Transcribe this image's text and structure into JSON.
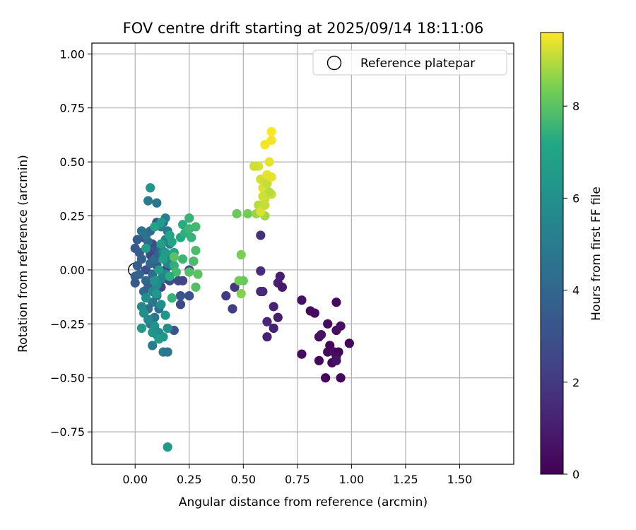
{
  "chart_data": {
    "type": "scatter",
    "title": "FOV centre drift starting at 2025/09/14 18:11:06",
    "xlabel": "Angular distance from reference (arcmin)",
    "ylabel": "Rotation from reference (arcmin)",
    "xlim": [
      -0.2,
      1.75
    ],
    "ylim": [
      -0.9,
      1.05
    ],
    "x_ticks": [
      0.0,
      0.25,
      0.5,
      0.75,
      1.0,
      1.25,
      1.5
    ],
    "x_tick_labels": [
      "0.00",
      "0.25",
      "0.50",
      "0.75",
      "1.00",
      "1.25",
      "1.50"
    ],
    "y_ticks": [
      -0.75,
      -0.5,
      -0.25,
      0.0,
      0.25,
      0.5,
      0.75,
      1.0
    ],
    "y_tick_labels": [
      "−0.75",
      "−0.50",
      "−0.25",
      "0.00",
      "0.25",
      "0.50",
      "0.75",
      "1.00"
    ],
    "grid": true,
    "legend": {
      "placement": "top-right",
      "entries": [
        "Reference platepar"
      ]
    },
    "reference_point": {
      "x": 0.0,
      "y": 0.0,
      "label": "Reference platepar"
    },
    "colorbar": {
      "label": "Hours from first FF file",
      "colormap": "viridis",
      "range": [
        0,
        9.6
      ],
      "ticks": [
        0,
        2,
        4,
        6,
        8
      ],
      "tick_labels": [
        "0",
        "2",
        "4",
        "6",
        "8"
      ]
    },
    "points": [
      {
        "x": 0.81,
        "y": -0.19,
        "h": 0.3
      },
      {
        "x": 0.88,
        "y": -0.5,
        "h": 0.2
      },
      {
        "x": 0.95,
        "y": -0.5,
        "h": 0.2
      },
      {
        "x": 0.89,
        "y": -0.25,
        "h": 0.4
      },
      {
        "x": 0.93,
        "y": -0.15,
        "h": 0.3
      },
      {
        "x": 0.95,
        "y": -0.26,
        "h": 0.5
      },
      {
        "x": 0.85,
        "y": -0.31,
        "h": 0.4
      },
      {
        "x": 0.86,
        "y": -0.3,
        "h": 0.6
      },
      {
        "x": 0.9,
        "y": -0.35,
        "h": 0.2
      },
      {
        "x": 0.89,
        "y": -0.38,
        "h": 0.3
      },
      {
        "x": 0.92,
        "y": -0.38,
        "h": 0.5
      },
      {
        "x": 0.94,
        "y": -0.38,
        "h": 0.1
      },
      {
        "x": 0.93,
        "y": -0.4,
        "h": 0.4
      },
      {
        "x": 0.91,
        "y": -0.43,
        "h": 0.3
      },
      {
        "x": 0.93,
        "y": -0.42,
        "h": 0.6
      },
      {
        "x": 0.85,
        "y": -0.42,
        "h": 0.2
      },
      {
        "x": 0.77,
        "y": -0.39,
        "h": 0.4
      },
      {
        "x": 0.99,
        "y": -0.34,
        "h": 0.1
      },
      {
        "x": 0.83,
        "y": -0.2,
        "h": 0.4
      },
      {
        "x": 0.93,
        "y": -0.28,
        "h": 0.5
      },
      {
        "x": 0.77,
        "y": -0.14,
        "h": 0.6
      },
      {
        "x": 0.67,
        "y": -0.03,
        "h": 1.0
      },
      {
        "x": 0.66,
        "y": -0.06,
        "h": 1.1
      },
      {
        "x": 0.68,
        "y": -0.08,
        "h": 0.9
      },
      {
        "x": 0.64,
        "y": -0.17,
        "h": 1.2
      },
      {
        "x": 0.66,
        "y": -0.22,
        "h": 1.0
      },
      {
        "x": 0.61,
        "y": -0.24,
        "h": 1.3
      },
      {
        "x": 0.64,
        "y": -0.27,
        "h": 1.1
      },
      {
        "x": 0.61,
        "y": -0.31,
        "h": 1.2
      },
      {
        "x": 0.59,
        "y": -0.1,
        "h": 1.4
      },
      {
        "x": 0.58,
        "y": -0.1,
        "h": 1.5
      },
      {
        "x": 0.58,
        "y": -0.005,
        "h": 1.6
      },
      {
        "x": 0.58,
        "y": 0.16,
        "h": 1.7
      },
      {
        "x": 0.42,
        "y": -0.12,
        "h": 2.1
      },
      {
        "x": 0.46,
        "y": -0.08,
        "h": 1.9
      },
      {
        "x": 0.45,
        "y": -0.18,
        "h": 2.2
      },
      {
        "x": 0.14,
        "y": 0.0,
        "h": 2.5
      },
      {
        "x": 0.16,
        "y": -0.05,
        "h": 2.8
      },
      {
        "x": 0.2,
        "y": -0.05,
        "h": 2.6
      },
      {
        "x": 0.22,
        "y": -0.05,
        "h": 2.4
      },
      {
        "x": 0.25,
        "y": -0.12,
        "h": 3.0
      },
      {
        "x": 0.21,
        "y": -0.12,
        "h": 3.2
      },
      {
        "x": 0.21,
        "y": -0.16,
        "h": 2.7
      },
      {
        "x": 0.18,
        "y": -0.28,
        "h": 3.1
      },
      {
        "x": 0.27,
        "y": 0.04,
        "h": 2.6
      },
      {
        "x": 0.25,
        "y": 0.0,
        "h": 3.0
      },
      {
        "x": 0.05,
        "y": 0.0,
        "h": 2.9
      },
      {
        "x": 0.1,
        "y": 0.02,
        "h": 3.3
      },
      {
        "x": 0.12,
        "y": -0.08,
        "h": 2.5
      },
      {
        "x": 0.11,
        "y": -0.06,
        "h": 2.7
      },
      {
        "x": 0.14,
        "y": -0.04,
        "h": 3.1
      },
      {
        "x": 0.08,
        "y": 0.12,
        "h": 2.8
      },
      {
        "x": 0.09,
        "y": 0.09,
        "h": 3.2
      },
      {
        "x": 0.07,
        "y": 0.07,
        "h": 2.6
      },
      {
        "x": 0.1,
        "y": 0.22,
        "h": 3.4
      },
      {
        "x": 0.13,
        "y": 0.22,
        "h": 3.0
      },
      {
        "x": 0.04,
        "y": 0.15,
        "h": 3.0
      },
      {
        "x": 0.01,
        "y": 0.14,
        "h": 3.5
      },
      {
        "x": 0.0,
        "y": 0.1,
        "h": 3.3
      },
      {
        "x": 0.02,
        "y": 0.08,
        "h": 3.6
      },
      {
        "x": 0.03,
        "y": 0.05,
        "h": 3.7
      },
      {
        "x": 0.01,
        "y": 0.02,
        "h": 3.5
      },
      {
        "x": 0.0,
        "y": -0.03,
        "h": 3.8
      },
      {
        "x": 0.0,
        "y": -0.06,
        "h": 3.4
      },
      {
        "x": 0.02,
        "y": -0.02,
        "h": 3.9
      },
      {
        "x": 0.05,
        "y": -0.05,
        "h": 4.0
      },
      {
        "x": 0.04,
        "y": -0.1,
        "h": 4.1
      },
      {
        "x": 0.06,
        "y": -0.08,
        "h": 3.8
      },
      {
        "x": 0.08,
        "y": -0.02,
        "h": 4.2
      },
      {
        "x": 0.07,
        "y": 0.03,
        "h": 4.0
      },
      {
        "x": 0.09,
        "y": 0.05,
        "h": 4.3
      },
      {
        "x": 0.11,
        "y": 0.07,
        "h": 3.9
      },
      {
        "x": 0.12,
        "y": 0.1,
        "h": 4.4
      },
      {
        "x": 0.06,
        "y": 0.13,
        "h": 4.1
      },
      {
        "x": 0.03,
        "y": 0.18,
        "h": 4.5
      },
      {
        "x": 0.05,
        "y": 0.16,
        "h": 4.6
      },
      {
        "x": 0.07,
        "y": 0.18,
        "h": 4.2
      },
      {
        "x": 0.1,
        "y": -0.12,
        "h": 4.3
      },
      {
        "x": 0.08,
        "y": -0.15,
        "h": 4.7
      },
      {
        "x": 0.06,
        "y": -0.18,
        "h": 4.4
      },
      {
        "x": 0.09,
        "y": -0.22,
        "h": 4.8
      },
      {
        "x": 0.11,
        "y": -0.18,
        "h": 4.5
      },
      {
        "x": 0.07,
        "y": -0.25,
        "h": 4.9
      },
      {
        "x": 0.1,
        "y": -0.3,
        "h": 4.6
      },
      {
        "x": 0.08,
        "y": -0.35,
        "h": 5.0
      },
      {
        "x": 0.13,
        "y": -0.38,
        "h": 5.1
      },
      {
        "x": 0.15,
        "y": -0.38,
        "h": 4.8
      },
      {
        "x": 0.06,
        "y": 0.32,
        "h": 5.0
      },
      {
        "x": 0.1,
        "y": 0.31,
        "h": 4.7
      },
      {
        "x": 0.14,
        "y": 0.24,
        "h": 5.2
      },
      {
        "x": 0.12,
        "y": 0.2,
        "h": 5.3
      },
      {
        "x": 0.15,
        "y": 0.18,
        "h": 5.0
      },
      {
        "x": 0.14,
        "y": 0.14,
        "h": 5.4
      },
      {
        "x": 0.16,
        "y": 0.12,
        "h": 5.1
      },
      {
        "x": 0.13,
        "y": 0.08,
        "h": 5.5
      },
      {
        "x": 0.16,
        "y": 0.06,
        "h": 5.2
      },
      {
        "x": 0.15,
        "y": 0.03,
        "h": 5.6
      },
      {
        "x": 0.17,
        "y": 0.02,
        "h": 5.3
      },
      {
        "x": 0.14,
        "y": -0.02,
        "h": 5.7
      },
      {
        "x": 0.12,
        "y": -0.04,
        "h": 5.4
      },
      {
        "x": 0.1,
        "y": -0.07,
        "h": 5.8
      },
      {
        "x": 0.08,
        "y": -0.1,
        "h": 5.5
      },
      {
        "x": 0.05,
        "y": -0.13,
        "h": 5.9
      },
      {
        "x": 0.03,
        "y": -0.17,
        "h": 5.6
      },
      {
        "x": 0.04,
        "y": -0.2,
        "h": 6.0
      },
      {
        "x": 0.06,
        "y": -0.23,
        "h": 5.7
      },
      {
        "x": 0.09,
        "y": -0.26,
        "h": 6.1
      },
      {
        "x": 0.11,
        "y": -0.29,
        "h": 5.8
      },
      {
        "x": 0.13,
        "y": -0.31,
        "h": 6.2
      },
      {
        "x": 0.15,
        "y": -0.27,
        "h": 5.9
      },
      {
        "x": 0.14,
        "y": -0.21,
        "h": 6.3
      },
      {
        "x": 0.12,
        "y": -0.16,
        "h": 6.0
      },
      {
        "x": 0.1,
        "y": -0.11,
        "h": 6.4
      },
      {
        "x": 0.09,
        "y": -0.05,
        "h": 6.1
      },
      {
        "x": 0.03,
        "y": -0.27,
        "h": 6.5
      },
      {
        "x": 0.08,
        "y": -0.29,
        "h": 6.2
      },
      {
        "x": 0.11,
        "y": -0.32,
        "h": 6.6
      },
      {
        "x": 0.07,
        "y": 0.38,
        "h": 6.3
      },
      {
        "x": 0.15,
        "y": -0.82,
        "h": 6.4
      },
      {
        "x": 0.12,
        "y": 0.12,
        "h": 6.7
      },
      {
        "x": 0.14,
        "y": 0.08,
        "h": 6.5
      },
      {
        "x": 0.13,
        "y": 0.05,
        "h": 6.8
      },
      {
        "x": 0.11,
        "y": 0.0,
        "h": 6.6
      },
      {
        "x": 0.09,
        "y": 0.2,
        "h": 6.9
      },
      {
        "x": 0.12,
        "y": 0.22,
        "h": 6.5
      },
      {
        "x": 0.05,
        "y": 0.1,
        "h": 6.7
      },
      {
        "x": 0.17,
        "y": 0.13,
        "h": 7.0
      },
      {
        "x": 0.18,
        "y": 0.08,
        "h": 7.1
      },
      {
        "x": 0.16,
        "y": 0.16,
        "h": 7.0
      },
      {
        "x": 0.21,
        "y": 0.15,
        "h": 7.2
      },
      {
        "x": 0.22,
        "y": 0.21,
        "h": 7.3
      },
      {
        "x": 0.23,
        "y": 0.17,
        "h": 7.4
      },
      {
        "x": 0.25,
        "y": 0.24,
        "h": 7.5
      },
      {
        "x": 0.25,
        "y": 0.19,
        "h": 7.6
      },
      {
        "x": 0.28,
        "y": 0.2,
        "h": 7.7
      },
      {
        "x": 0.26,
        "y": 0.15,
        "h": 7.5
      },
      {
        "x": 0.28,
        "y": 0.09,
        "h": 7.8
      },
      {
        "x": 0.22,
        "y": 0.05,
        "h": 7.6
      },
      {
        "x": 0.18,
        "y": 0.02,
        "h": 7.4
      },
      {
        "x": 0.19,
        "y": -0.01,
        "h": 7.7
      },
      {
        "x": 0.16,
        "y": -0.03,
        "h": 7.3
      },
      {
        "x": 0.25,
        "y": -0.01,
        "h": 7.9
      },
      {
        "x": 0.27,
        "y": 0.04,
        "h": 7.8
      },
      {
        "x": 0.29,
        "y": -0.02,
        "h": 8.0
      },
      {
        "x": 0.28,
        "y": -0.08,
        "h": 7.9
      },
      {
        "x": 0.17,
        "y": -0.13,
        "h": 7.5
      },
      {
        "x": 0.18,
        "y": 0.06,
        "h": 8.0
      },
      {
        "x": 0.47,
        "y": 0.26,
        "h": 8.2
      },
      {
        "x": 0.52,
        "y": 0.26,
        "h": 8.3
      },
      {
        "x": 0.49,
        "y": 0.07,
        "h": 8.4
      },
      {
        "x": 0.48,
        "y": -0.05,
        "h": 8.3
      },
      {
        "x": 0.5,
        "y": -0.05,
        "h": 8.2
      },
      {
        "x": 0.49,
        "y": -0.11,
        "h": 8.5
      },
      {
        "x": 0.56,
        "y": 0.26,
        "h": 8.7
      },
      {
        "x": 0.6,
        "y": 0.25,
        "h": 8.8
      },
      {
        "x": 0.57,
        "y": 0.3,
        "h": 9.0
      },
      {
        "x": 0.6,
        "y": 0.33,
        "h": 9.1
      },
      {
        "x": 0.63,
        "y": 0.35,
        "h": 9.2
      },
      {
        "x": 0.59,
        "y": 0.38,
        "h": 9.3
      },
      {
        "x": 0.58,
        "y": 0.42,
        "h": 9.2
      },
      {
        "x": 0.61,
        "y": 0.44,
        "h": 9.4
      },
      {
        "x": 0.57,
        "y": 0.48,
        "h": 9.3
      },
      {
        "x": 0.55,
        "y": 0.48,
        "h": 9.2
      },
      {
        "x": 0.62,
        "y": 0.5,
        "h": 9.4
      },
      {
        "x": 0.6,
        "y": 0.58,
        "h": 9.5
      },
      {
        "x": 0.63,
        "y": 0.6,
        "h": 9.5
      },
      {
        "x": 0.63,
        "y": 0.64,
        "h": 9.6
      },
      {
        "x": 0.61,
        "y": 0.4,
        "h": 9.1
      },
      {
        "x": 0.62,
        "y": 0.36,
        "h": 9.0
      },
      {
        "x": 0.59,
        "y": 0.34,
        "h": 9.2
      },
      {
        "x": 0.58,
        "y": 0.27,
        "h": 9.3
      },
      {
        "x": 0.63,
        "y": 0.43,
        "h": 9.4
      },
      {
        "x": 0.6,
        "y": 0.3,
        "h": 9.1
      }
    ]
  }
}
